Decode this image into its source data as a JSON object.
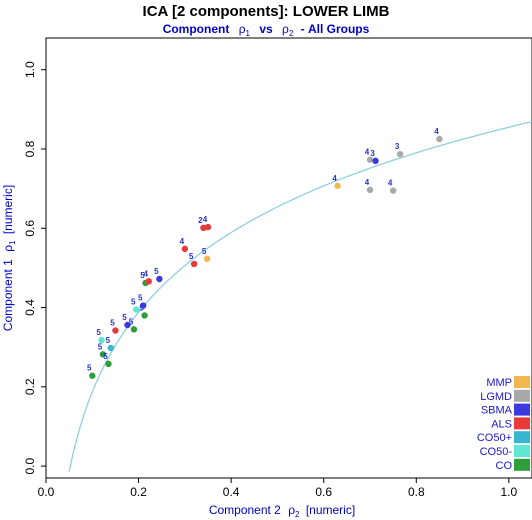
{
  "chart_data": {
    "type": "scatter",
    "title": "ICA [2 components]: LOWER LIMB",
    "subtitle": {
      "prefix": "Component",
      "rho": "ρ",
      "sub1": "1",
      "middle": "vs",
      "sub2": "2",
      "suffix": "- All Groups"
    },
    "xlabel": {
      "text": "Component 2",
      "rho": "ρ",
      "sub": "2",
      "unit": "[numeric]"
    },
    "ylabel": {
      "text": "Component 1",
      "rho": "ρ",
      "sub": "1",
      "unit": "[numeric]"
    },
    "xlim": [
      0.0,
      1.05
    ],
    "ylim": [
      -0.03,
      1.08
    ],
    "xticks": [
      "0.0",
      "0.2",
      "0.4",
      "0.6",
      "0.8",
      "1.0"
    ],
    "yticks": [
      "0.0",
      "0.2",
      "0.4",
      "0.6",
      "0.8",
      "1.0"
    ],
    "grid": false,
    "legend_position": "bottom-right",
    "legend": [
      {
        "label": "MMP",
        "color": "#f0b84e"
      },
      {
        "label": "LGMD",
        "color": "#a9a9a9"
      },
      {
        "label": "SBMA",
        "color": "#3a3ae0"
      },
      {
        "label": "ALS",
        "color": "#e83a3a"
      },
      {
        "label": "CO50+",
        "color": "#38b8d0"
      },
      {
        "label": "CO50-",
        "color": "#5ee8d2"
      },
      {
        "label": "CO",
        "color": "#2e9e3a"
      }
    ],
    "fit_curve": {
      "color": "#8fcfe0",
      "x_start": 0.05,
      "x_end": 1.05
    },
    "points": [
      {
        "group": "CO",
        "x": 0.1,
        "y": 0.228,
        "label": "5"
      },
      {
        "group": "CO",
        "x": 0.123,
        "y": 0.282,
        "label": "5"
      },
      {
        "group": "CO",
        "x": 0.135,
        "y": 0.258,
        "label": "5"
      },
      {
        "group": "CO50-",
        "x": 0.12,
        "y": 0.318,
        "label": "5"
      },
      {
        "group": "CO50+",
        "x": 0.14,
        "y": 0.298,
        "label": "5"
      },
      {
        "group": "ALS",
        "x": 0.15,
        "y": 0.342,
        "label": "5"
      },
      {
        "group": "SBMA",
        "x": 0.176,
        "y": 0.356,
        "label": "5"
      },
      {
        "group": "CO",
        "x": 0.19,
        "y": 0.345,
        "label": "5"
      },
      {
        "group": "CO50-",
        "x": 0.195,
        "y": 0.395,
        "label": "5"
      },
      {
        "group": "CO",
        "x": 0.213,
        "y": 0.38,
        "label": "5"
      },
      {
        "group": "SBMA",
        "x": 0.21,
        "y": 0.405,
        "label": "5"
      },
      {
        "group": "CO",
        "x": 0.215,
        "y": 0.462,
        "label": "5"
      },
      {
        "group": "ALS",
        "x": 0.222,
        "y": 0.466,
        "label": "4"
      },
      {
        "group": "SBMA",
        "x": 0.245,
        "y": 0.472,
        "label": "5"
      },
      {
        "group": "ALS",
        "x": 0.3,
        "y": 0.548,
        "label": "4"
      },
      {
        "group": "ALS",
        "x": 0.32,
        "y": 0.51,
        "label": "5"
      },
      {
        "group": "MMP",
        "x": 0.348,
        "y": 0.523,
        "label": "5"
      },
      {
        "group": "ALS",
        "x": 0.34,
        "y": 0.601,
        "label": "2"
      },
      {
        "group": "ALS",
        "x": 0.35,
        "y": 0.603,
        "label": "4"
      },
      {
        "group": "MMP",
        "x": 0.63,
        "y": 0.707,
        "label": "4"
      },
      {
        "group": "LGMD",
        "x": 0.7,
        "y": 0.697,
        "label": "4"
      },
      {
        "group": "LGMD",
        "x": 0.75,
        "y": 0.695,
        "label": "4"
      },
      {
        "group": "LGMD",
        "x": 0.7,
        "y": 0.773,
        "label": "4"
      },
      {
        "group": "SBMA",
        "x": 0.712,
        "y": 0.77,
        "label": "3"
      },
      {
        "group": "LGMD",
        "x": 0.765,
        "y": 0.787,
        "label": "3"
      },
      {
        "group": "LGMD",
        "x": 0.85,
        "y": 0.825,
        "label": "4"
      }
    ]
  }
}
